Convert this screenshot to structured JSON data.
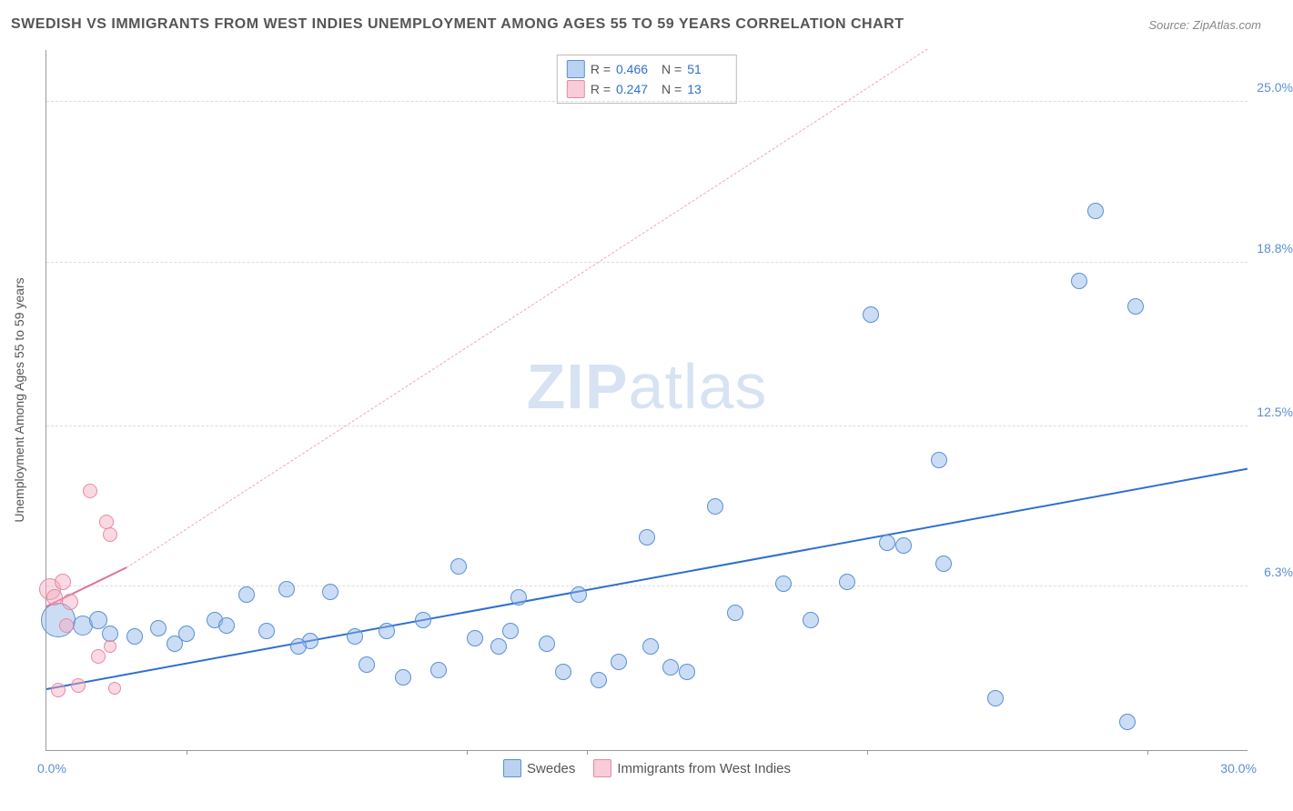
{
  "title": "SWEDISH VS IMMIGRANTS FROM WEST INDIES UNEMPLOYMENT AMONG AGES 55 TO 59 YEARS CORRELATION CHART",
  "source": "Source: ZipAtlas.com",
  "watermark_a": "ZIP",
  "watermark_b": "atlas",
  "ylabel": "Unemployment Among Ages 55 to 59 years",
  "xlim": [
    0,
    30
  ],
  "ylim": [
    0,
    27
  ],
  "xlim_labels": [
    "0.0%",
    "30.0%"
  ],
  "ytick_vals": [
    6.3,
    12.5,
    18.8,
    25.0
  ],
  "ytick_labels": [
    "6.3%",
    "12.5%",
    "18.8%",
    "25.0%"
  ],
  "xtick_vals": [
    3.5,
    10.5,
    13.5,
    20.5,
    27.5
  ],
  "series": [
    {
      "name": "Swedes",
      "class": "series-a",
      "swatch": "swatch-a",
      "r_label": "R =",
      "r_value": "0.466",
      "n_label": "N =",
      "n_value": "51",
      "trend": {
        "x1": 0,
        "y1": 2.3,
        "x2": 30,
        "y2": 10.8,
        "class": "trend-a"
      },
      "points": [
        {
          "x": 0.3,
          "y": 5.0,
          "r": 18
        },
        {
          "x": 0.9,
          "y": 4.8,
          "r": 10
        },
        {
          "x": 1.3,
          "y": 5.0,
          "r": 9
        },
        {
          "x": 1.6,
          "y": 4.5,
          "r": 8
        },
        {
          "x": 2.2,
          "y": 4.4,
          "r": 8
        },
        {
          "x": 2.8,
          "y": 4.7,
          "r": 8
        },
        {
          "x": 3.2,
          "y": 4.1,
          "r": 8
        },
        {
          "x": 3.5,
          "y": 4.5,
          "r": 8
        },
        {
          "x": 4.2,
          "y": 5.0,
          "r": 8
        },
        {
          "x": 4.5,
          "y": 4.8,
          "r": 8
        },
        {
          "x": 5.0,
          "y": 6.0,
          "r": 8
        },
        {
          "x": 5.5,
          "y": 4.6,
          "r": 8
        },
        {
          "x": 6.0,
          "y": 6.2,
          "r": 8
        },
        {
          "x": 6.6,
          "y": 4.2,
          "r": 8
        },
        {
          "x": 7.1,
          "y": 6.1,
          "r": 8
        },
        {
          "x": 7.7,
          "y": 4.4,
          "r": 8
        },
        {
          "x": 8.0,
          "y": 3.3,
          "r": 8
        },
        {
          "x": 8.5,
          "y": 4.6,
          "r": 8
        },
        {
          "x": 8.9,
          "y": 2.8,
          "r": 8
        },
        {
          "x": 9.4,
          "y": 5.0,
          "r": 8
        },
        {
          "x": 9.8,
          "y": 3.1,
          "r": 8
        },
        {
          "x": 10.3,
          "y": 7.1,
          "r": 8
        },
        {
          "x": 10.7,
          "y": 4.3,
          "r": 8
        },
        {
          "x": 11.3,
          "y": 4.0,
          "r": 8
        },
        {
          "x": 11.8,
          "y": 5.9,
          "r": 8
        },
        {
          "x": 12.5,
          "y": 4.1,
          "r": 8
        },
        {
          "x": 12.9,
          "y": 3.0,
          "r": 8
        },
        {
          "x": 13.3,
          "y": 6.0,
          "r": 8
        },
        {
          "x": 13.8,
          "y": 2.7,
          "r": 8
        },
        {
          "x": 14.3,
          "y": 3.4,
          "r": 8
        },
        {
          "x": 15.0,
          "y": 8.2,
          "r": 8
        },
        {
          "x": 15.1,
          "y": 4.0,
          "r": 8
        },
        {
          "x": 15.6,
          "y": 3.2,
          "r": 8
        },
        {
          "x": 16.7,
          "y": 9.4,
          "r": 8
        },
        {
          "x": 17.2,
          "y": 5.3,
          "r": 8
        },
        {
          "x": 18.4,
          "y": 6.4,
          "r": 8
        },
        {
          "x": 19.1,
          "y": 5.0,
          "r": 8
        },
        {
          "x": 20.0,
          "y": 6.5,
          "r": 8
        },
        {
          "x": 20.6,
          "y": 16.8,
          "r": 8
        },
        {
          "x": 21.0,
          "y": 8.0,
          "r": 8
        },
        {
          "x": 21.4,
          "y": 7.9,
          "r": 8
        },
        {
          "x": 22.3,
          "y": 11.2,
          "r": 8
        },
        {
          "x": 22.4,
          "y": 7.2,
          "r": 8
        },
        {
          "x": 23.7,
          "y": 2.0,
          "r": 8
        },
        {
          "x": 25.8,
          "y": 18.1,
          "r": 8
        },
        {
          "x": 26.2,
          "y": 20.8,
          "r": 8
        },
        {
          "x": 27.0,
          "y": 1.1,
          "r": 8
        },
        {
          "x": 27.2,
          "y": 17.1,
          "r": 8
        },
        {
          "x": 11.6,
          "y": 4.6,
          "r": 8
        },
        {
          "x": 6.3,
          "y": 4.0,
          "r": 8
        },
        {
          "x": 16.0,
          "y": 3.0,
          "r": 8
        }
      ]
    },
    {
      "name": "Immigrants from West Indies",
      "class": "series-b",
      "swatch": "swatch-b",
      "r_label": "R =",
      "r_value": "0.247",
      "n_label": "N =",
      "n_value": "13",
      "trend_solid": {
        "x1": 0,
        "y1": 5.5,
        "x2": 2.0,
        "y2": 7.0,
        "class": "trend-b-solid"
      },
      "trend_dash": {
        "x1": 2.0,
        "y1": 7.0,
        "x2": 22,
        "y2": 27,
        "class": "trend-b-dash"
      },
      "points": [
        {
          "x": 0.1,
          "y": 6.2,
          "r": 11
        },
        {
          "x": 0.2,
          "y": 5.9,
          "r": 8
        },
        {
          "x": 0.4,
          "y": 6.5,
          "r": 8
        },
        {
          "x": 0.6,
          "y": 5.7,
          "r": 8
        },
        {
          "x": 0.8,
          "y": 2.5,
          "r": 7
        },
        {
          "x": 0.3,
          "y": 2.3,
          "r": 7
        },
        {
          "x": 1.1,
          "y": 10.0,
          "r": 7
        },
        {
          "x": 1.3,
          "y": 3.6,
          "r": 7
        },
        {
          "x": 1.5,
          "y": 8.8,
          "r": 7
        },
        {
          "x": 1.6,
          "y": 8.3,
          "r": 7
        },
        {
          "x": 1.7,
          "y": 2.4,
          "r": 6
        },
        {
          "x": 1.6,
          "y": 4.0,
          "r": 6
        },
        {
          "x": 0.5,
          "y": 4.8,
          "r": 7
        }
      ]
    }
  ]
}
